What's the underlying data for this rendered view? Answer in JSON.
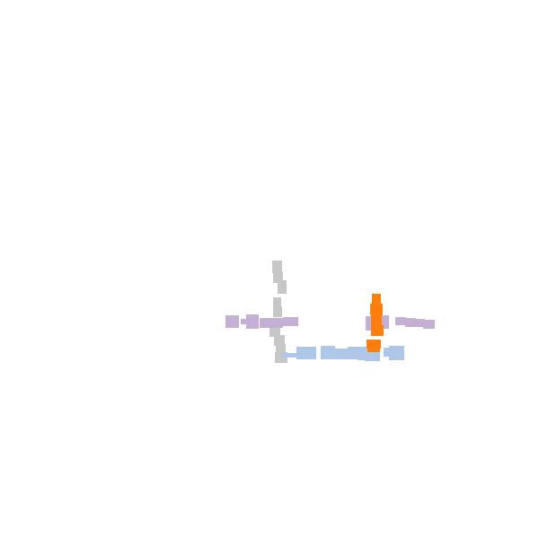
{
  "scene": {
    "background": "#ffffff",
    "palette": {
      "gray": "#c7c7c7",
      "purple": "#c5b0d5",
      "blue": "#aec7e8",
      "orange": "#ff7f0e"
    },
    "pieces": [
      {
        "name": "gray-track",
        "color": "gray"
      },
      {
        "name": "purple-track-left",
        "color": "purple"
      },
      {
        "name": "purple-track-right",
        "color": "purple"
      },
      {
        "name": "blue-track",
        "color": "blue"
      },
      {
        "name": "orange-track",
        "color": "orange"
      }
    ]
  }
}
